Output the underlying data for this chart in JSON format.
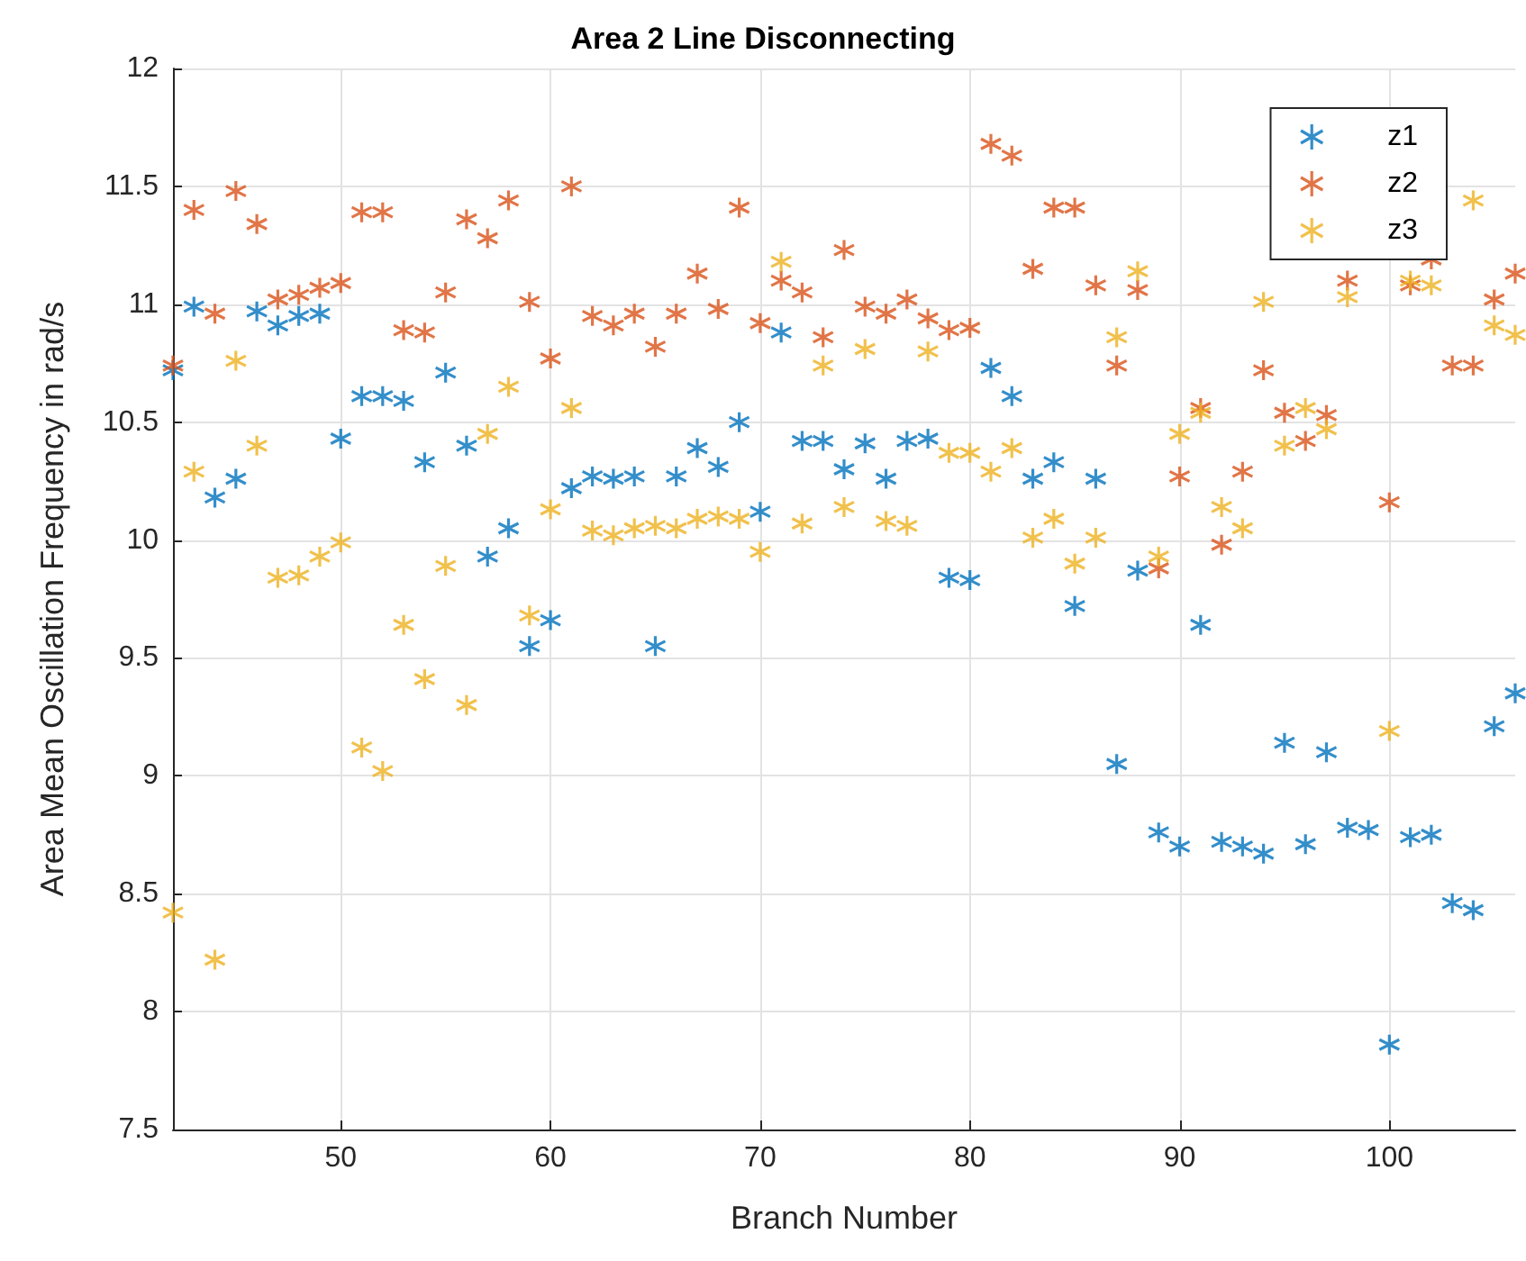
{
  "chart_data": {
    "type": "scatter",
    "title": "Area 2 Line Disconnecting",
    "xlabel": "Branch Number",
    "ylabel": "Area Mean Oscillation Frequency in rad/s",
    "x": [
      42,
      43,
      44,
      45,
      46,
      47,
      48,
      49,
      50,
      51,
      52,
      53,
      54,
      55,
      56,
      57,
      58,
      59,
      60,
      61,
      62,
      63,
      64,
      65,
      66,
      67,
      68,
      69,
      70,
      71,
      72,
      73,
      74,
      75,
      76,
      77,
      78,
      79,
      80,
      81,
      82,
      83,
      84,
      85,
      86,
      87,
      88,
      89,
      90,
      91,
      92,
      93,
      94,
      95,
      96,
      97,
      98,
      99,
      100,
      101,
      102,
      103,
      104,
      105,
      106
    ],
    "series": [
      {
        "name": "z1",
        "color": "#0072bd",
        "values": [
          10.72,
          10.99,
          10.18,
          10.26,
          10.97,
          10.91,
          10.95,
          10.96,
          10.43,
          10.61,
          10.61,
          10.59,
          10.33,
          10.71,
          10.4,
          9.93,
          10.05,
          9.55,
          9.66,
          10.22,
          10.27,
          10.26,
          10.27,
          9.55,
          10.27,
          10.39,
          10.31,
          10.5,
          10.12,
          10.88,
          10.42,
          10.42,
          10.3,
          10.41,
          10.26,
          10.42,
          10.43,
          9.84,
          9.83,
          10.73,
          10.61,
          10.26,
          10.33,
          9.72,
          10.26,
          9.05,
          9.87,
          8.76,
          8.7,
          9.64,
          8.72,
          8.7,
          8.67,
          9.14,
          8.71,
          9.1,
          8.78,
          8.77,
          7.86,
          8.74,
          8.75,
          8.46,
          8.43,
          9.21,
          9.35
        ]
      },
      {
        "name": "z2",
        "color": "#d95319",
        "values": [
          10.74,
          11.4,
          10.96,
          11.48,
          11.34,
          11.02,
          11.04,
          11.07,
          11.09,
          11.39,
          11.39,
          10.89,
          10.88,
          11.05,
          11.36,
          11.28,
          11.44,
          11.01,
          10.77,
          11.5,
          10.95,
          10.91,
          10.96,
          10.82,
          10.96,
          11.13,
          10.98,
          11.41,
          10.92,
          11.1,
          11.05,
          10.86,
          11.23,
          10.99,
          10.96,
          11.02,
          10.94,
          10.89,
          10.9,
          11.68,
          11.63,
          11.15,
          11.41,
          11.41,
          11.08,
          10.74,
          11.06,
          9.88,
          10.27,
          10.56,
          9.98,
          10.29,
          10.72,
          10.54,
          10.42,
          10.53,
          11.1,
          null,
          10.16,
          11.08,
          11.19,
          10.74,
          10.74,
          11.02,
          11.13
        ]
      },
      {
        "name": "z3",
        "color": "#edb120",
        "values": [
          8.42,
          10.29,
          8.22,
          10.76,
          10.4,
          9.84,
          9.85,
          9.93,
          9.99,
          9.12,
          9.02,
          9.64,
          9.41,
          9.89,
          9.3,
          10.45,
          10.65,
          9.68,
          10.13,
          10.56,
          10.04,
          10.02,
          10.05,
          10.06,
          10.05,
          10.09,
          10.1,
          10.09,
          9.95,
          11.18,
          10.07,
          10.74,
          10.14,
          10.81,
          10.08,
          10.06,
          10.8,
          10.37,
          10.37,
          10.29,
          10.39,
          10.01,
          10.09,
          9.9,
          10.01,
          10.86,
          11.14,
          9.93,
          10.45,
          10.54,
          10.14,
          10.05,
          11.01,
          10.4,
          10.56,
          10.47,
          11.03,
          null,
          9.19,
          11.1,
          11.08,
          null,
          11.44,
          10.91,
          10.87
        ]
      }
    ],
    "xlim": [
      42,
      106
    ],
    "xticks": [
      50,
      60,
      70,
      80,
      90,
      100
    ],
    "ylim": [
      7.5,
      12
    ],
    "yticks": [
      7.5,
      8,
      8.5,
      9,
      9.5,
      10,
      10.5,
      11,
      11.5,
      12
    ],
    "grid": true,
    "legend": "top right",
    "marker": "star"
  }
}
